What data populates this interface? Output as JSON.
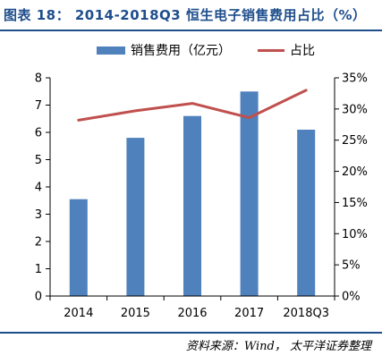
{
  "figure": {
    "title": "图表 18： 2014-2018Q3 恒生电子销售费用占比（%）",
    "source": "资料来源：Wind， 太平洋证券整理"
  },
  "chart_data": {
    "type": "bar",
    "categories": [
      "2014",
      "2015",
      "2016",
      "2017",
      "2018Q3"
    ],
    "series": [
      {
        "name": "销售费用（亿元）",
        "type": "bar",
        "axis": "left",
        "color": "#4f81bd",
        "values": [
          3.55,
          5.8,
          6.6,
          7.5,
          6.1
        ]
      },
      {
        "name": "占比",
        "type": "line",
        "axis": "right",
        "color": "#c0504d",
        "values": [
          28.2,
          29.7,
          30.9,
          28.6,
          33.0
        ]
      }
    ],
    "y_left": {
      "min": 0,
      "max": 8,
      "ticks": [
        "0",
        "1",
        "2",
        "3",
        "4",
        "5",
        "6",
        "7",
        "8"
      ]
    },
    "y_right": {
      "min": 0,
      "max": 35,
      "ticks": [
        "0%",
        "5%",
        "10%",
        "15%",
        "20%",
        "25%",
        "30%",
        "35%"
      ]
    },
    "legend_position": "top",
    "grid": false
  }
}
